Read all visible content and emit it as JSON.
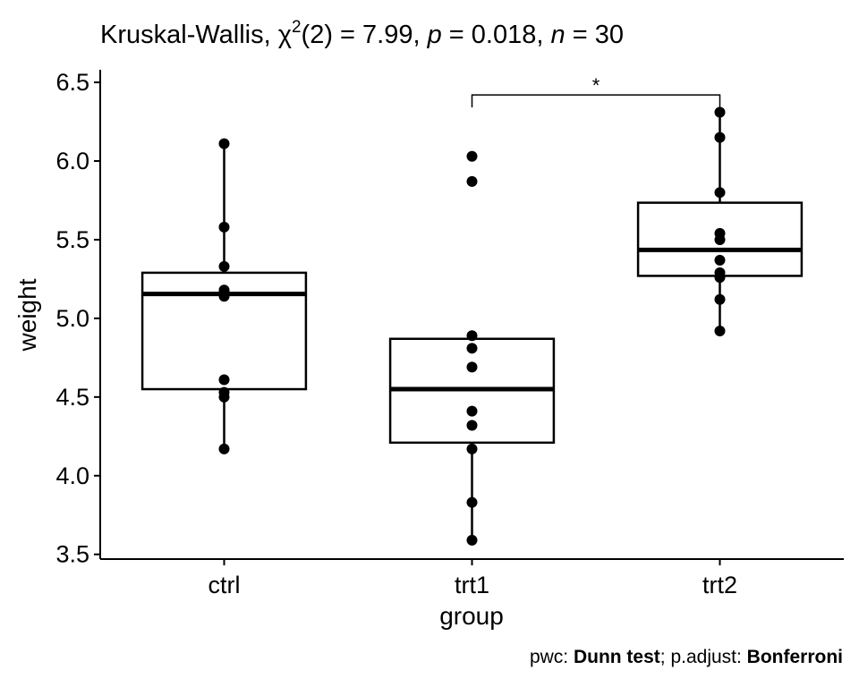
{
  "chart_data": {
    "type": "boxplot",
    "title": {
      "prefix": "Kruskal-Wallis, ",
      "chi": "χ",
      "chi_sup": "2",
      "df": "(2) = 7.99, ",
      "p_sym": "p",
      "p_val": " = 0.018, ",
      "n_sym": "n",
      "n_val": " = 30"
    },
    "xlabel": "group",
    "ylabel": "weight",
    "categories": [
      "ctrl",
      "trt1",
      "trt2"
    ],
    "ylim": [
      3.47,
      6.58
    ],
    "yticks": [
      3.5,
      4.0,
      4.5,
      5.0,
      5.5,
      6.0,
      6.5
    ],
    "ytick_labels": [
      "3.5",
      "4.0",
      "4.5",
      "5.0",
      "5.5",
      "6.0",
      "6.5"
    ],
    "boxes": [
      {
        "group": "ctrl",
        "whisker_low": 4.17,
        "q1": 4.55,
        "median": 5.155,
        "q3": 5.29,
        "whisker_high": 6.11
      },
      {
        "group": "trt1",
        "whisker_low": 3.59,
        "q1": 4.21,
        "median": 4.55,
        "q3": 4.87,
        "whisker_high": 4.89
      },
      {
        "group": "trt2",
        "whisker_low": 4.92,
        "q1": 5.27,
        "median": 5.435,
        "q3": 5.735,
        "whisker_high": 6.31
      }
    ],
    "points": [
      {
        "group": "ctrl",
        "values": [
          4.17,
          5.58,
          5.18,
          6.11,
          4.5,
          4.61,
          5.17,
          4.53,
          5.33,
          5.14
        ]
      },
      {
        "group": "trt1",
        "values": [
          4.81,
          4.17,
          4.41,
          3.59,
          5.87,
          3.83,
          6.03,
          4.89,
          4.32,
          4.69
        ]
      },
      {
        "group": "trt2",
        "values": [
          6.31,
          5.12,
          5.54,
          5.5,
          5.37,
          5.29,
          4.92,
          6.15,
          5.8,
          5.26
        ]
      }
    ],
    "comparisons": [
      {
        "group1": "trt1",
        "group2": "trt2",
        "y": 6.42,
        "label": "*"
      }
    ],
    "caption": {
      "pwc_label": "pwc: ",
      "pwc_method": "Dunn test",
      "sep": "; p.adjust: ",
      "adjust_method": "Bonferroni"
    }
  }
}
